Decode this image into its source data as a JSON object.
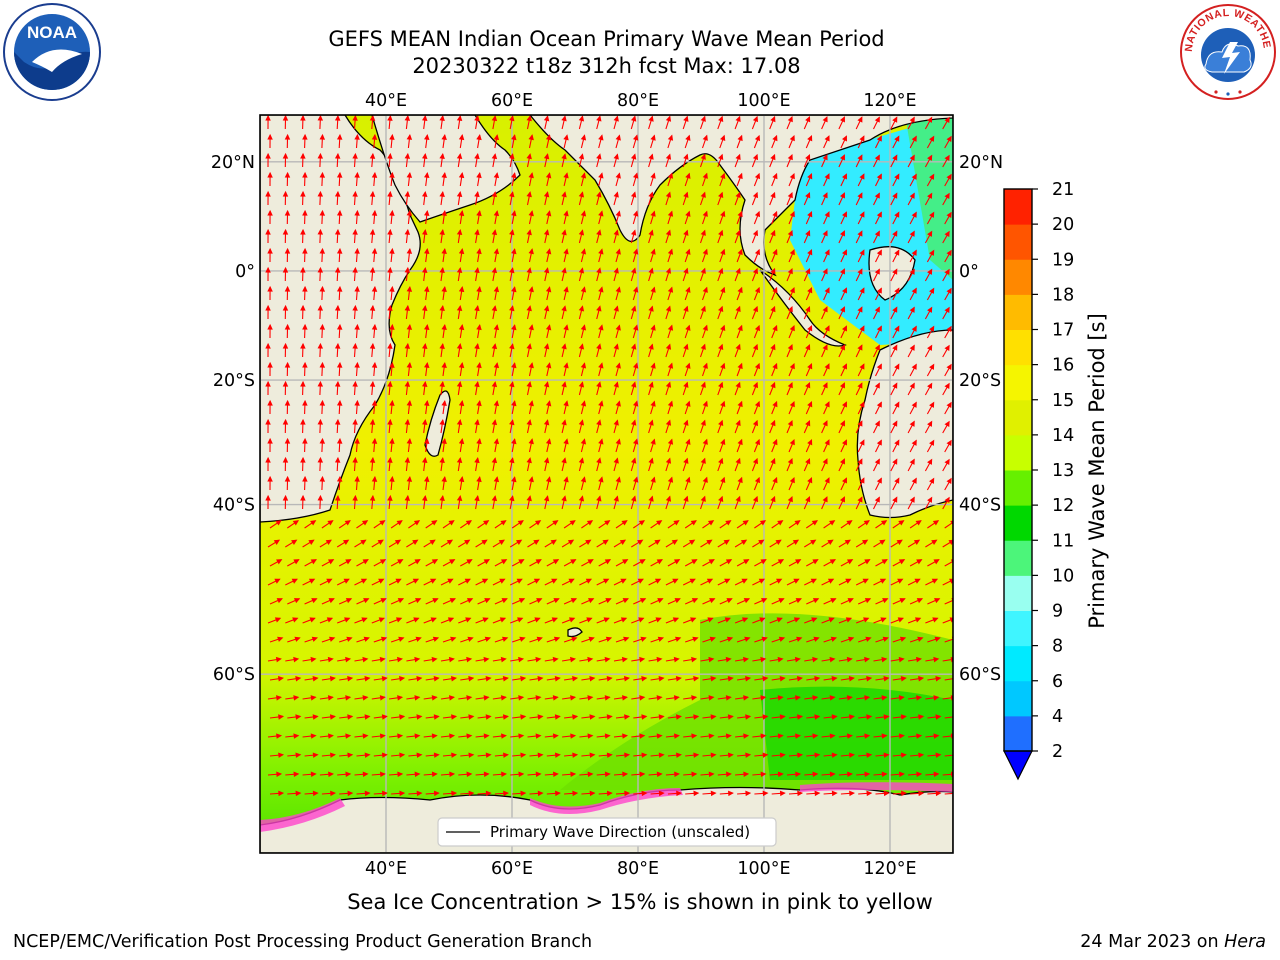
{
  "title": {
    "line1": "GEFS MEAN Indian Ocean Primary Wave Mean Period",
    "line2": "20230322 t18z 312h fcst   Max: 17.08"
  },
  "axes": {
    "lon_labels": [
      "40°E",
      "60°E",
      "80°E",
      "100°E",
      "120°E"
    ],
    "lon_values": [
      40,
      60,
      80,
      100,
      120
    ],
    "lat_labels": [
      "20°N",
      "0°",
      "20°S",
      "40°S",
      "60°S"
    ],
    "lat_values": [
      20,
      0,
      -20,
      -40,
      -60
    ],
    "lon_range": [
      20,
      130
    ],
    "lat_range": [
      -73,
      28
    ]
  },
  "legend": {
    "label": "Primary Wave Direction (unscaled)"
  },
  "colorbar": {
    "label": "Primary Wave Mean Period [s]",
    "ticks": [
      "2",
      "4",
      "6",
      "8",
      "9",
      "10",
      "11",
      "12",
      "13",
      "14",
      "15",
      "16",
      "17",
      "18",
      "19",
      "20",
      "21"
    ],
    "colors": [
      "#1f6fff",
      "#00c8ff",
      "#00eaff",
      "#3ff5ff",
      "#99fff0",
      "#4cf57a",
      "#00d800",
      "#66f000",
      "#c8ff00",
      "#e0f000",
      "#f5f500",
      "#ffe000",
      "#ffbb00",
      "#ff8800",
      "#ff5500",
      "#ff2200"
    ],
    "extend_color": "#0000ff"
  },
  "colors": {
    "land": "#eeecdc",
    "grid": "#b8b8b8",
    "arrow": "#ff0000",
    "ice": "#ff44cc"
  },
  "logos": {
    "left": "NOAA",
    "right": "NATIONAL WEATHER SERVICE"
  },
  "footer": {
    "note": "Sea Ice Concentration > 15% is shown in pink to yellow",
    "credit": "NCEP/EMC/Verification Post Processing Product Generation Branch",
    "date": "24 Mar 2023 on ",
    "machine": "Hera"
  }
}
